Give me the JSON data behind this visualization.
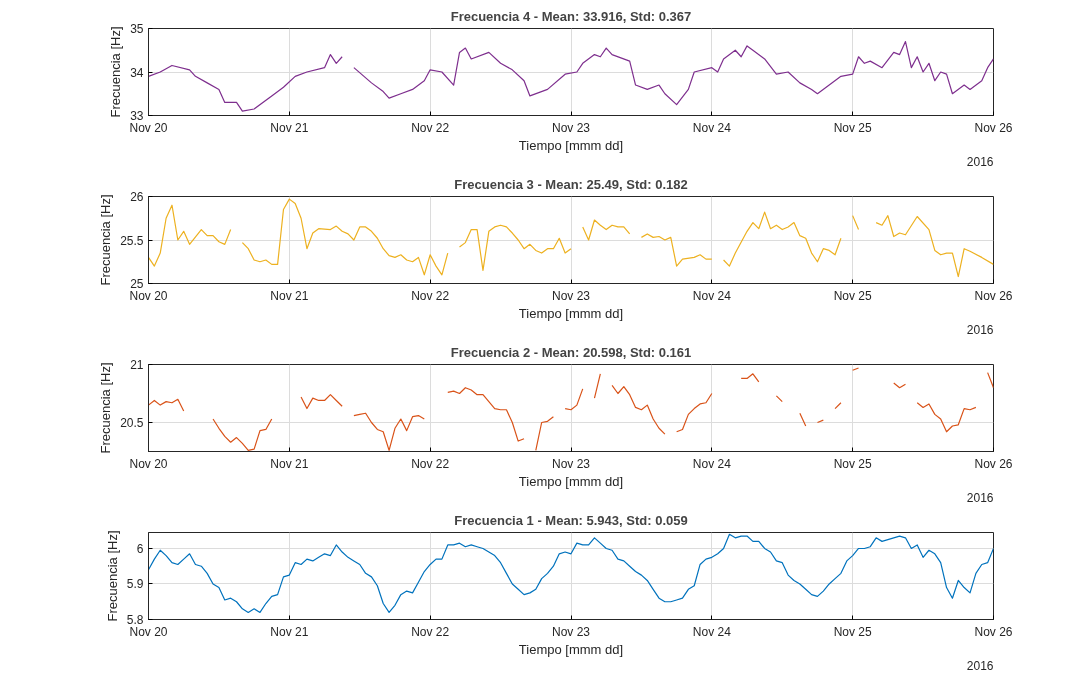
{
  "chart_data": [
    {
      "type": "line",
      "title": "Frecuencia 4 - Mean: 33.916, Std: 0.367",
      "xlabel": "Tiempo [mmm dd]",
      "ylabel": "Frecuencia [Hz]",
      "annotations": [
        "2016"
      ],
      "color": "#7e2f8e",
      "grid": true,
      "xlim": [
        "2016-11-20",
        "2016-11-26"
      ],
      "xticks": [
        {
          "value": "2016-11-20",
          "label": "Nov 20"
        },
        {
          "value": "2016-11-21",
          "label": "Nov 21"
        },
        {
          "value": "2016-11-22",
          "label": "Nov 22"
        },
        {
          "value": "2016-11-23",
          "label": "Nov 23"
        },
        {
          "value": "2016-11-24",
          "label": "Nov 24"
        },
        {
          "value": "2016-11-25",
          "label": "Nov 25"
        },
        {
          "value": "2016-11-26",
          "label": "Nov 26"
        }
      ],
      "ylim": [
        33,
        35
      ],
      "yticks": [
        33,
        34,
        35
      ],
      "x": [
        "2016-11-20T00:00",
        "2016-11-20T02:00",
        "2016-11-20T04:00",
        "2016-11-20T07:00",
        "2016-11-20T08:00",
        "2016-11-20T10:00",
        "2016-11-20T12:00",
        "2016-11-20T13:00",
        "2016-11-20T15:00",
        "2016-11-20T16:00",
        "2016-11-20T18:00",
        "2016-11-20T21:00",
        "2016-11-20T23:00",
        "2016-11-21T01:00",
        "2016-11-21T03:00",
        "2016-11-21T06:00",
        "2016-11-21T07:00",
        "2016-11-21T08:00",
        "2016-11-21T09:00",
        "2016-11-21T10:00",
        "2016-11-21T11:00",
        "2016-11-21T14:00",
        "2016-11-21T16:00",
        "2016-11-21T17:00",
        "2016-11-21T19:00",
        "2016-11-21T21:00",
        "2016-11-21T23:00",
        "2016-11-22T00:00",
        "2016-11-22T02:00",
        "2016-11-22T04:00",
        "2016-11-22T05:00",
        "2016-11-22T06:00",
        "2016-11-22T07:00",
        "2016-11-22T10:00",
        "2016-11-22T12:00",
        "2016-11-22T14:00",
        "2016-11-22T16:00",
        "2016-11-22T17:00",
        "2016-11-22T20:00",
        "2016-11-22T23:00",
        "2016-11-23T01:00",
        "2016-11-23T02:00",
        "2016-11-23T04:00",
        "2016-11-23T05:00",
        "2016-11-23T06:00",
        "2016-11-23T07:00",
        "2016-11-23T10:00",
        "2016-11-23T11:00",
        "2016-11-23T13:00",
        "2016-11-23T15:00",
        "2016-11-23T16:00",
        "2016-11-23T18:00",
        "2016-11-23T20:00",
        "2016-11-23T21:00",
        "2016-11-24T00:00",
        "2016-11-24T01:00",
        "2016-11-24T02:00",
        "2016-11-24T04:00",
        "2016-11-24T05:00",
        "2016-11-24T06:00",
        "2016-11-24T07:00",
        "2016-11-24T09:00",
        "2016-11-24T11:00",
        "2016-11-24T13:00",
        "2016-11-24T15:00",
        "2016-11-24T17:00",
        "2016-11-24T18:00",
        "2016-11-24T20:00",
        "2016-11-24T22:00",
        "2016-11-25T00:00",
        "2016-11-25T01:00",
        "2016-11-25T02:00",
        "2016-11-25T03:00",
        "2016-11-25T05:00",
        "2016-11-25T07:00",
        "2016-11-25T08:00",
        "2016-11-25T09:00",
        "2016-11-25T10:00",
        "2016-11-25T11:00",
        "2016-11-25T12:00",
        "2016-11-25T13:00",
        "2016-11-25T14:00",
        "2016-11-25T15:00",
        "2016-11-25T16:00",
        "2016-11-25T17:00",
        "2016-11-25T19:00",
        "2016-11-25T20:00",
        "2016-11-25T22:00",
        "2016-11-25T23:00",
        "2016-11-26T00:00"
      ],
      "values": [
        33.9,
        34.0,
        34.15,
        34.05,
        33.9,
        33.75,
        33.6,
        33.3,
        33.3,
        33.1,
        33.15,
        33.45,
        33.65,
        33.9,
        34.0,
        34.1,
        34.4,
        34.2,
        34.35,
        null,
        34.1,
        33.75,
        33.55,
        33.4,
        33.5,
        33.6,
        33.8,
        34.05,
        34.0,
        33.7,
        34.45,
        34.55,
        34.3,
        34.45,
        34.2,
        34.05,
        33.8,
        33.45,
        33.6,
        33.95,
        34.0,
        34.2,
        34.4,
        34.35,
        34.55,
        34.4,
        34.25,
        33.7,
        33.6,
        33.7,
        33.5,
        33.25,
        33.6,
        34.0,
        34.1,
        34.0,
        34.3,
        34.5,
        34.35,
        34.6,
        34.5,
        34.3,
        33.95,
        34.0,
        33.75,
        33.6,
        33.5,
        33.7,
        33.9,
        33.95,
        34.35,
        34.2,
        34.25,
        34.1,
        34.45,
        34.4,
        34.7,
        34.1,
        34.35,
        34.0,
        34.2,
        33.8,
        34.0,
        33.95,
        33.5,
        33.7,
        33.6,
        33.8,
        34.1,
        34.3
      ]
    },
    {
      "type": "line",
      "title": "Frecuencia 3 - Mean: 25.49, Std: 0.182",
      "xlabel": "Tiempo [mmm dd]",
      "ylabel": "Frecuencia [Hz]",
      "annotations": [
        "2016"
      ],
      "color": "#edb120",
      "grid": true,
      "xlim": [
        "2016-11-20",
        "2016-11-26"
      ],
      "xticks": [
        {
          "value": "2016-11-20",
          "label": "Nov 20"
        },
        {
          "value": "2016-11-21",
          "label": "Nov 21"
        },
        {
          "value": "2016-11-22",
          "label": "Nov 22"
        },
        {
          "value": "2016-11-23",
          "label": "Nov 23"
        },
        {
          "value": "2016-11-24",
          "label": "Nov 24"
        },
        {
          "value": "2016-11-25",
          "label": "Nov 25"
        },
        {
          "value": "2016-11-26",
          "label": "Nov 26"
        }
      ],
      "ylim": [
        25,
        26
      ],
      "yticks": [
        25,
        25.5,
        26
      ],
      "x": [
        "2016-11-20T00:00",
        "2016-11-20T01:00",
        "2016-11-20T02:00",
        "2016-11-20T03:00",
        "2016-11-20T04:00",
        "2016-11-20T05:00",
        "2016-11-20T06:00",
        "2016-11-20T07:00",
        "2016-11-20T09:00",
        "2016-11-20T10:00",
        "2016-11-20T11:00",
        "2016-11-20T12:00",
        "2016-11-20T13:00",
        "2016-11-20T14:00",
        "2016-11-20T15:00",
        "2016-11-20T16:00",
        "2016-11-20T17:00",
        "2016-11-20T18:00",
        "2016-11-20T19:00",
        "2016-11-20T20:00",
        "2016-11-20T21:00",
        "2016-11-20T22:00",
        "2016-11-20T23:00",
        "2016-11-21T00:00",
        "2016-11-21T01:00",
        "2016-11-21T02:00",
        "2016-11-21T03:00",
        "2016-11-21T04:00",
        "2016-11-21T05:00",
        "2016-11-21T07:00",
        "2016-11-21T08:00",
        "2016-11-21T09:00",
        "2016-11-21T10:00",
        "2016-11-21T11:00",
        "2016-11-21T12:00",
        "2016-11-21T13:00",
        "2016-11-21T14:00",
        "2016-11-21T15:00",
        "2016-11-21T16:00",
        "2016-11-21T17:00",
        "2016-11-21T18:00",
        "2016-11-21T19:00",
        "2016-11-21T20:00",
        "2016-11-21T21:00",
        "2016-11-21T22:00",
        "2016-11-21T23:00",
        "2016-11-22T00:00",
        "2016-11-22T01:00",
        "2016-11-22T02:00",
        "2016-11-22T03:00",
        "2016-11-22T04:00",
        "2016-11-22T05:00",
        "2016-11-22T06:00",
        "2016-11-22T07:00",
        "2016-11-22T08:00",
        "2016-11-22T09:00",
        "2016-11-22T10:00",
        "2016-11-22T11:00",
        "2016-11-22T12:00",
        "2016-11-22T13:00",
        "2016-11-22T14:00",
        "2016-11-22T15:00",
        "2016-11-22T16:00",
        "2016-11-22T17:00",
        "2016-11-22T18:00",
        "2016-11-22T19:00",
        "2016-11-22T20:00",
        "2016-11-22T21:00",
        "2016-11-22T22:00",
        "2016-11-22T23:00",
        "2016-11-23T00:00",
        "2016-11-23T01:00",
        "2016-11-23T02:00",
        "2016-11-23T03:00",
        "2016-11-23T04:00",
        "2016-11-23T05:00",
        "2016-11-23T06:00",
        "2016-11-23T07:00",
        "2016-11-23T08:00",
        "2016-11-23T09:00",
        "2016-11-23T10:00",
        "2016-11-23T11:00",
        "2016-11-23T12:00",
        "2016-11-23T13:00",
        "2016-11-23T14:00",
        "2016-11-23T15:00",
        "2016-11-23T16:00",
        "2016-11-23T17:00",
        "2016-11-23T18:00",
        "2016-11-23T19:00",
        "2016-11-23T21:00",
        "2016-11-23T22:00",
        "2016-11-23T23:00",
        "2016-11-24T00:00",
        "2016-11-24T01:00",
        "2016-11-24T02:00",
        "2016-11-24T03:00",
        "2016-11-24T04:00",
        "2016-11-24T06:00",
        "2016-11-24T07:00",
        "2016-11-24T08:00",
        "2016-11-24T09:00",
        "2016-11-24T10:00",
        "2016-11-24T11:00",
        "2016-11-24T12:00",
        "2016-11-24T13:00",
        "2016-11-24T14:00",
        "2016-11-24T15:00",
        "2016-11-24T16:00",
        "2016-11-24T17:00",
        "2016-11-24T18:00",
        "2016-11-24T19:00",
        "2016-11-24T20:00",
        "2016-11-24T21:00",
        "2016-11-24T22:00",
        "2016-11-24T23:00",
        "2016-11-25T00:00",
        "2016-11-25T01:00",
        "2016-11-25T02:00",
        "2016-11-25T04:00",
        "2016-11-25T05:00",
        "2016-11-25T06:00",
        "2016-11-25T07:00",
        "2016-11-25T08:00",
        "2016-11-25T09:00",
        "2016-11-25T11:00",
        "2016-11-25T13:00",
        "2016-11-25T14:00",
        "2016-11-25T15:00",
        "2016-11-25T16:00",
        "2016-11-25T17:00",
        "2016-11-25T18:00",
        "2016-11-25T19:00",
        "2016-11-25T20:00",
        "2016-11-25T22:00",
        "2016-11-26T00:00"
      ],
      "values": [
        25.3,
        25.2,
        25.35,
        25.75,
        25.9,
        25.5,
        25.6,
        25.45,
        25.62,
        25.55,
        25.55,
        25.48,
        25.45,
        25.62,
        null,
        25.47,
        25.4,
        25.27,
        25.25,
        25.27,
        25.22,
        25.22,
        25.85,
        25.97,
        25.92,
        25.75,
        25.4,
        25.58,
        25.63,
        25.62,
        25.66,
        25.6,
        25.57,
        25.5,
        25.65,
        25.65,
        25.6,
        25.52,
        25.4,
        25.32,
        25.3,
        25.33,
        25.27,
        25.25,
        25.3,
        25.1,
        25.33,
        25.2,
        25.1,
        25.35,
        null,
        25.42,
        25.47,
        25.62,
        25.62,
        25.15,
        25.6,
        25.65,
        25.67,
        25.65,
        25.58,
        25.5,
        25.4,
        25.45,
        25.38,
        25.35,
        25.4,
        25.4,
        25.52,
        25.35,
        25.4,
        null,
        25.65,
        25.5,
        25.73,
        25.67,
        25.62,
        25.67,
        25.65,
        25.65,
        25.57,
        null,
        25.53,
        25.57,
        25.53,
        25.54,
        25.5,
        25.53,
        25.2,
        25.28,
        25.3,
        25.33,
        25.28,
        25.28,
        null,
        25.27,
        25.2,
        25.35,
        25.6,
        25.7,
        25.63,
        25.82,
        25.63,
        25.67,
        25.62,
        25.65,
        25.7,
        25.55,
        25.52,
        25.35,
        25.25,
        25.4,
        25.38,
        25.33,
        25.52,
        null,
        25.78,
        25.62,
        null,
        25.7,
        25.67,
        25.78,
        25.54,
        25.58,
        25.56,
        25.77,
        25.62,
        25.38,
        25.33,
        25.35,
        25.35,
        25.08,
        25.4,
        25.37,
        25.3,
        25.22
      ]
    },
    {
      "type": "line",
      "title": "Frecuencia 2 - Mean: 20.598, Std: 0.161",
      "xlabel": "Tiempo [mmm dd]",
      "ylabel": "Frecuencia [Hz]",
      "annotations": [
        "2016"
      ],
      "color": "#d95319",
      "grid": true,
      "xlim": [
        "2016-11-20",
        "2016-11-26"
      ],
      "xticks": [
        {
          "value": "2016-11-20",
          "label": "Nov 20"
        },
        {
          "value": "2016-11-21",
          "label": "Nov 21"
        },
        {
          "value": "2016-11-22",
          "label": "Nov 22"
        },
        {
          "value": "2016-11-23",
          "label": "Nov 23"
        },
        {
          "value": "2016-11-24",
          "label": "Nov 24"
        },
        {
          "value": "2016-11-25",
          "label": "Nov 25"
        },
        {
          "value": "2016-11-26",
          "label": "Nov 26"
        }
      ],
      "ylim": [
        20.25,
        21
      ],
      "yticks": [
        20.5,
        21
      ],
      "x": [
        "2016-11-20T00:00",
        "2016-11-20T01:00",
        "2016-11-20T02:00",
        "2016-11-20T03:00",
        "2016-11-20T04:00",
        "2016-11-20T05:00",
        "2016-11-20T06:00",
        "2016-11-20T08:00",
        "2016-11-20T11:00",
        "2016-11-20T12:00",
        "2016-11-20T13:00",
        "2016-11-20T14:00",
        "2016-11-20T15:00",
        "2016-11-20T16:00",
        "2016-11-20T17:00",
        "2016-11-20T18:00",
        "2016-11-20T19:00",
        "2016-11-20T20:00",
        "2016-11-20T21:00",
        "2016-11-20T23:00",
        "2016-11-21T02:00",
        "2016-11-21T03:00",
        "2016-11-21T04:00",
        "2016-11-21T05:00",
        "2016-11-21T06:00",
        "2016-11-21T07:00",
        "2016-11-21T08:00",
        "2016-11-21T09:00",
        "2016-11-21T10:00",
        "2016-11-21T11:00",
        "2016-11-21T12:00",
        "2016-11-21T13:00",
        "2016-11-21T14:00",
        "2016-11-21T15:00",
        "2016-11-21T16:00",
        "2016-11-21T17:00",
        "2016-11-21T18:00",
        "2016-11-21T19:00",
        "2016-11-21T20:00",
        "2016-11-21T21:00",
        "2016-11-21T22:00",
        "2016-11-21T23:00",
        "2016-11-22T01:00",
        "2016-11-22T03:00",
        "2016-11-22T04:00",
        "2016-11-22T05:00",
        "2016-11-22T06:00",
        "2016-11-22T07:00",
        "2016-11-22T08:00",
        "2016-11-22T09:00",
        "2016-11-22T10:00",
        "2016-11-22T11:00",
        "2016-11-22T12:00",
        "2016-11-22T13:00",
        "2016-11-22T14:00",
        "2016-11-22T15:00",
        "2016-11-22T16:00",
        "2016-11-22T17:00",
        "2016-11-22T18:00",
        "2016-11-22T19:00",
        "2016-11-22T20:00",
        "2016-11-22T21:00",
        "2016-11-22T22:00",
        "2016-11-22T23:00",
        "2016-11-23T00:00",
        "2016-11-23T01:00",
        "2016-11-23T02:00",
        "2016-11-23T03:00",
        "2016-11-23T04:00",
        "2016-11-23T05:00",
        "2016-11-23T06:00",
        "2016-11-23T07:00",
        "2016-11-23T08:00",
        "2016-11-23T09:00",
        "2016-11-23T10:00",
        "2016-11-23T11:00",
        "2016-11-23T12:00",
        "2016-11-23T13:00",
        "2016-11-23T14:00",
        "2016-11-23T15:00",
        "2016-11-23T16:00",
        "2016-11-23T17:00",
        "2016-11-23T18:00",
        "2016-11-23T19:00",
        "2016-11-23T20:00",
        "2016-11-23T21:00",
        "2016-11-23T22:00",
        "2016-11-23T23:00",
        "2016-11-24T00:00",
        "2016-11-24T02:00",
        "2016-11-24T05:00",
        "2016-11-24T06:00",
        "2016-11-24T07:00",
        "2016-11-24T08:00",
        "2016-11-24T09:00",
        "2016-11-24T11:00",
        "2016-11-24T12:00",
        "2016-11-24T13:00",
        "2016-11-24T15:00",
        "2016-11-24T16:00",
        "2016-11-24T17:00",
        "2016-11-24T18:00",
        "2016-11-24T19:00",
        "2016-11-24T20:00",
        "2016-11-24T21:00",
        "2016-11-24T22:00",
        "2016-11-24T23:00",
        "2016-11-25T00:00",
        "2016-11-25T01:00",
        "2016-11-25T04:00",
        "2016-11-25T07:00",
        "2016-11-25T08:00",
        "2016-11-25T09:00",
        "2016-11-25T10:00",
        "2016-11-25T11:00",
        "2016-11-25T12:00",
        "2016-11-25T13:00",
        "2016-11-25T14:00",
        "2016-11-25T15:00",
        "2016-11-25T16:00",
        "2016-11-25T17:00",
        "2016-11-25T18:00",
        "2016-11-25T19:00",
        "2016-11-25T20:00",
        "2016-11-25T21:00",
        "2016-11-25T22:00",
        "2016-11-25T23:00",
        "2016-11-26T00:00"
      ],
      "values": [
        20.65,
        20.69,
        20.65,
        20.68,
        20.67,
        20.7,
        20.6,
        null,
        20.53,
        20.45,
        20.38,
        20.33,
        20.37,
        20.32,
        20.26,
        20.27,
        20.43,
        20.44,
        20.53,
        null,
        20.72,
        20.62,
        20.71,
        20.69,
        20.69,
        20.74,
        20.69,
        20.64,
        null,
        20.56,
        20.57,
        20.58,
        20.5,
        20.44,
        20.42,
        20.26,
        20.45,
        20.53,
        20.43,
        20.55,
        20.56,
        20.53,
        null,
        20.76,
        20.77,
        20.75,
        20.8,
        20.78,
        20.74,
        20.74,
        20.68,
        20.62,
        20.61,
        20.61,
        20.5,
        20.34,
        20.36,
        null,
        20.26,
        20.5,
        20.51,
        20.55,
        null,
        20.62,
        20.61,
        20.65,
        20.79,
        null,
        20.71,
        20.92,
        null,
        20.82,
        20.75,
        20.81,
        20.74,
        20.63,
        20.61,
        20.65,
        20.53,
        20.45,
        20.4,
        null,
        20.42,
        20.44,
        20.57,
        20.62,
        20.66,
        20.67,
        20.75,
        null,
        20.88,
        20.88,
        20.92,
        20.85,
        null,
        20.73,
        20.68,
        null,
        20.58,
        20.47,
        null,
        20.5,
        20.52,
        null,
        20.62,
        20.67,
        null,
        20.95,
        20.97,
        null,
        20.84,
        20.8,
        20.83,
        null,
        20.67,
        20.63,
        20.66,
        20.57,
        20.53,
        20.42,
        20.47,
        20.48,
        20.62,
        20.61,
        20.63,
        null,
        20.93,
        20.8
      ]
    },
    {
      "type": "line",
      "title": "Frecuencia 1 - Mean: 5.943, Std: 0.059",
      "xlabel": "Tiempo [mmm dd]",
      "ylabel": "Frecuencia [Hz]",
      "annotations": [
        "2016"
      ],
      "color": "#0072bd",
      "grid": true,
      "xlim": [
        "2016-11-20",
        "2016-11-26"
      ],
      "xticks": [
        {
          "value": "2016-11-20",
          "label": "Nov 20"
        },
        {
          "value": "2016-11-21",
          "label": "Nov 21"
        },
        {
          "value": "2016-11-22",
          "label": "Nov 22"
        },
        {
          "value": "2016-11-23",
          "label": "Nov 23"
        },
        {
          "value": "2016-11-24",
          "label": "Nov 24"
        },
        {
          "value": "2016-11-25",
          "label": "Nov 25"
        },
        {
          "value": "2016-11-26",
          "label": "Nov 26"
        }
      ],
      "ylim": [
        5.8,
        6.045
      ],
      "yticks": [
        5.8,
        5.9,
        6
      ],
      "x": [
        "2016-11-20T00:00",
        "2016-11-20T01:00",
        "2016-11-20T02:00",
        "2016-11-20T03:00",
        "2016-11-20T04:00",
        "2016-11-20T05:00",
        "2016-11-20T06:00",
        "2016-11-20T07:00",
        "2016-11-20T08:00",
        "2016-11-20T09:00",
        "2016-11-20T10:00",
        "2016-11-20T11:00",
        "2016-11-20T12:00",
        "2016-11-20T13:00",
        "2016-11-20T14:00",
        "2016-11-20T15:00",
        "2016-11-20T16:00",
        "2016-11-20T17:00",
        "2016-11-20T18:00",
        "2016-11-20T19:00",
        "2016-11-20T20:00",
        "2016-11-20T21:00",
        "2016-11-20T22:00",
        "2016-11-20T23:00",
        "2016-11-21T00:00",
        "2016-11-21T01:00",
        "2016-11-21T02:00",
        "2016-11-21T03:00",
        "2016-11-21T04:00",
        "2016-11-21T05:00",
        "2016-11-21T06:00",
        "2016-11-21T07:00",
        "2016-11-21T08:00",
        "2016-11-21T09:00",
        "2016-11-21T10:00",
        "2016-11-21T11:00",
        "2016-11-21T12:00",
        "2016-11-21T13:00",
        "2016-11-21T14:00",
        "2016-11-21T15:00",
        "2016-11-21T16:00",
        "2016-11-21T17:00",
        "2016-11-21T18:00",
        "2016-11-21T19:00",
        "2016-11-21T20:00",
        "2016-11-21T21:00",
        "2016-11-21T22:00",
        "2016-11-21T23:00",
        "2016-11-22T00:00",
        "2016-11-22T01:00",
        "2016-11-22T02:00",
        "2016-11-22T03:00",
        "2016-11-22T04:00",
        "2016-11-22T05:00",
        "2016-11-22T06:00",
        "2016-11-22T07:00",
        "2016-11-22T08:00",
        "2016-11-22T09:00",
        "2016-11-22T10:00",
        "2016-11-22T11:00",
        "2016-11-22T12:00",
        "2016-11-22T13:00",
        "2016-11-22T14:00",
        "2016-11-22T15:00",
        "2016-11-22T16:00",
        "2016-11-22T17:00",
        "2016-11-22T18:00",
        "2016-11-22T19:00",
        "2016-11-22T20:00",
        "2016-11-22T21:00",
        "2016-11-22T22:00",
        "2016-11-22T23:00",
        "2016-11-23T00:00",
        "2016-11-23T01:00",
        "2016-11-23T02:00",
        "2016-11-23T03:00",
        "2016-11-23T04:00",
        "2016-11-23T05:00",
        "2016-11-23T06:00",
        "2016-11-23T07:00",
        "2016-11-23T08:00",
        "2016-11-23T09:00",
        "2016-11-23T10:00",
        "2016-11-23T11:00",
        "2016-11-23T12:00",
        "2016-11-23T13:00",
        "2016-11-23T14:00",
        "2016-11-23T15:00",
        "2016-11-23T16:00",
        "2016-11-23T17:00",
        "2016-11-23T18:00",
        "2016-11-23T19:00",
        "2016-11-23T20:00",
        "2016-11-23T21:00",
        "2016-11-23T22:00",
        "2016-11-23T23:00",
        "2016-11-24T00:00",
        "2016-11-24T01:00",
        "2016-11-24T02:00",
        "2016-11-24T03:00",
        "2016-11-24T04:00",
        "2016-11-24T05:00",
        "2016-11-24T06:00",
        "2016-11-24T07:00",
        "2016-11-24T08:00",
        "2016-11-24T09:00",
        "2016-11-24T10:00",
        "2016-11-24T11:00",
        "2016-11-24T12:00",
        "2016-11-24T13:00",
        "2016-11-24T14:00",
        "2016-11-24T15:00",
        "2016-11-24T16:00",
        "2016-11-24T17:00",
        "2016-11-24T18:00",
        "2016-11-24T19:00",
        "2016-11-24T20:00",
        "2016-11-24T21:00",
        "2016-11-24T22:00",
        "2016-11-24T23:00",
        "2016-11-25T00:00",
        "2016-11-25T01:00",
        "2016-11-25T02:00",
        "2016-11-25T03:00",
        "2016-11-25T04:00",
        "2016-11-25T05:00",
        "2016-11-25T06:00",
        "2016-11-25T07:00",
        "2016-11-25T08:00",
        "2016-11-25T09:00",
        "2016-11-25T10:00",
        "2016-11-25T11:00",
        "2016-11-25T12:00",
        "2016-11-25T13:00",
        "2016-11-25T14:00",
        "2016-11-25T15:00",
        "2016-11-25T16:00",
        "2016-11-25T17:00",
        "2016-11-25T18:00",
        "2016-11-25T19:00",
        "2016-11-25T20:00",
        "2016-11-25T21:00",
        "2016-11-25T22:00",
        "2016-11-25T23:00",
        "2016-11-26T00:00"
      ],
      "values": [
        5.94,
        5.97,
        5.995,
        5.98,
        5.96,
        5.955,
        5.97,
        5.985,
        5.955,
        5.95,
        5.93,
        5.9,
        5.89,
        5.855,
        5.86,
        5.85,
        5.83,
        5.82,
        5.83,
        5.82,
        5.845,
        5.865,
        5.87,
        5.92,
        5.925,
        5.96,
        5.955,
        5.97,
        5.965,
        5.975,
        5.985,
        5.98,
        6.01,
        5.99,
        5.975,
        5.965,
        5.955,
        5.93,
        5.92,
        5.895,
        5.845,
        5.82,
        5.84,
        5.87,
        5.88,
        5.875,
        5.905,
        5.935,
        5.955,
        5.97,
        5.97,
        6.01,
        6.01,
        6.015,
        6.005,
        6.01,
        6.005,
        6.0,
        5.99,
        5.98,
        5.96,
        5.93,
        5.9,
        5.885,
        5.87,
        5.875,
        5.885,
        5.915,
        5.93,
        5.95,
        5.985,
        5.99,
        5.985,
        6.015,
        6.01,
        6.01,
        6.03,
        6.015,
        6.0,
        5.995,
        5.97,
        5.965,
        5.95,
        5.935,
        5.925,
        5.91,
        5.885,
        5.86,
        5.85,
        5.85,
        5.855,
        5.86,
        5.885,
        5.895,
        5.955,
        5.97,
        5.975,
        5.985,
        6.0,
        6.04,
        6.03,
        6.035,
        6.035,
        6.02,
        6.02,
        6.0,
        5.99,
        5.965,
        5.96,
        5.925,
        5.91,
        5.9,
        5.885,
        5.87,
        5.865,
        5.88,
        5.9,
        5.915,
        5.93,
        5.965,
        5.98,
        6.0,
        6.0,
        6.005,
        6.03,
        6.02,
        6.025,
        6.03,
        6.035,
        6.03,
        6.0,
        6.01,
        5.975,
        5.995,
        5.985,
        5.96,
        5.89,
        5.86,
        5.91,
        5.89,
        5.875,
        5.93,
        5.955,
        5.96,
        6.0
      ]
    }
  ]
}
